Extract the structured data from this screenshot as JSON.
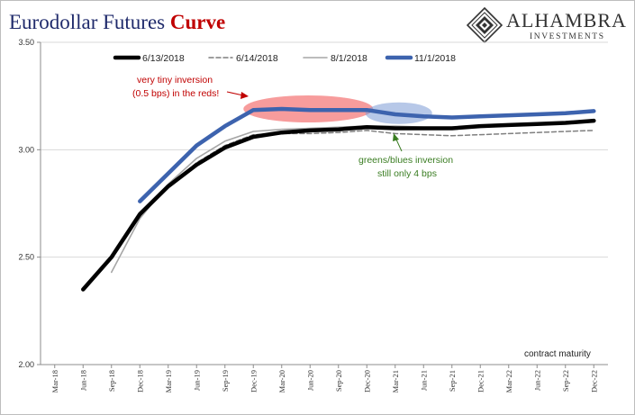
{
  "header": {
    "title_main": "Eurodollar Futures",
    "title_accent": "Curve",
    "logo_name": "ALHAMBRA",
    "logo_sub": "INVESTMENTS"
  },
  "chart_data": {
    "type": "line",
    "title": "Eurodollar Futures Curve",
    "xlabel": "",
    "ylabel": "",
    "ylim": [
      2.0,
      3.5
    ],
    "yticks": [
      "2.00",
      "2.50",
      "3.00",
      "3.50"
    ],
    "categories": [
      "Mar-18",
      "Jun-18",
      "Sep-18",
      "Dec-18",
      "Mar-19",
      "Jun-19",
      "Sep-19",
      "Dec-19",
      "Mar-20",
      "Jun-20",
      "Sep-20",
      "Dec-20",
      "Mar-21",
      "Jun-21",
      "Sep-21",
      "Dec-21",
      "Mar-22",
      "Jun-22",
      "Sep-22",
      "Dec-22"
    ],
    "grid": "horizontal",
    "legend_position": "top",
    "series": [
      {
        "name": "6/13/2018",
        "color": "#000000",
        "style": "solid-thick",
        "values": [
          null,
          2.35,
          2.5,
          2.7,
          2.83,
          2.93,
          3.01,
          3.06,
          3.08,
          3.09,
          3.095,
          3.105,
          3.1,
          3.1,
          3.1,
          3.11,
          3.115,
          3.12,
          3.125,
          3.135
        ]
      },
      {
        "name": "6/14/2018",
        "color": "#7f7f7f",
        "style": "dashed",
        "values": [
          null,
          2.35,
          2.5,
          2.69,
          2.83,
          2.94,
          3.02,
          3.07,
          3.075,
          3.075,
          3.08,
          3.09,
          3.075,
          3.07,
          3.065,
          3.07,
          3.075,
          3.08,
          3.085,
          3.09
        ]
      },
      {
        "name": "8/1/2018",
        "color": "#a6a6a6",
        "style": "solid-thin",
        "values": [
          null,
          null,
          2.43,
          2.68,
          2.84,
          2.96,
          3.04,
          3.085,
          3.095,
          3.1,
          3.105,
          3.11,
          3.11,
          3.105,
          3.105,
          3.11,
          3.115,
          3.12,
          3.125,
          3.13
        ]
      },
      {
        "name": "11/1/2018",
        "color": "#3d63ae",
        "style": "solid-thick",
        "values": [
          null,
          null,
          null,
          2.76,
          2.89,
          3.02,
          3.11,
          3.185,
          3.19,
          3.185,
          3.185,
          3.185,
          3.165,
          3.155,
          3.15,
          3.155,
          3.16,
          3.165,
          3.17,
          3.18
        ]
      }
    ],
    "annotations": {
      "red_text": [
        "very tiny inversion",
        "(0.5 bps) in the reds!"
      ],
      "green_text": [
        "greens/blues inversion",
        "still only 4 bps"
      ],
      "note": "contract maturity"
    }
  }
}
